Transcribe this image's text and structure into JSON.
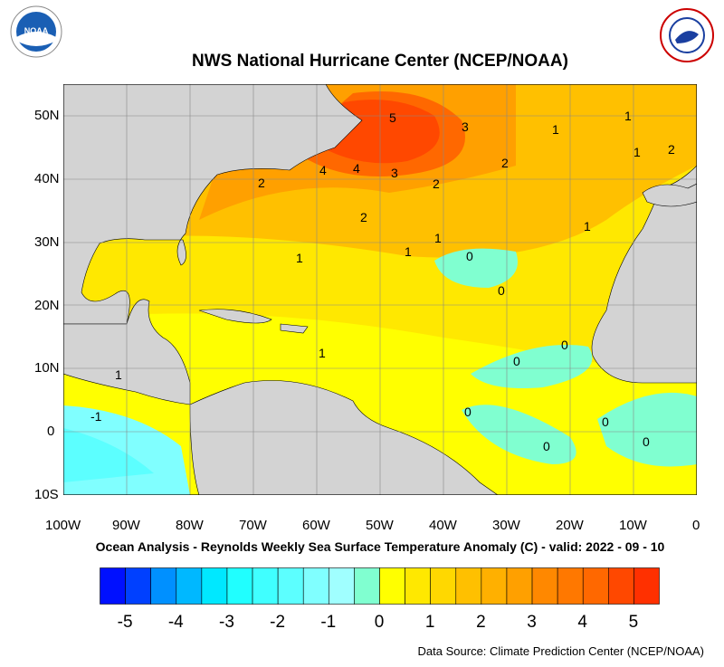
{
  "header": {
    "title": "NWS National Hurricane Center (NCEP/NOAA)",
    "logo_left": "NOAA",
    "logo_right": "NATIONAL WEATHER SERVICE"
  },
  "map": {
    "subtitle": "Ocean Analysis - Reynolds Weekly Sea Surface Temperature Anomaly (C) - valid: 2022 - 09 - 10",
    "lat_labels": [
      "50N",
      "40N",
      "30N",
      "20N",
      "10N",
      "0",
      "10S"
    ],
    "lon_labels": [
      "100W",
      "90W",
      "80W",
      "70W",
      "60W",
      "50W",
      "40W",
      "30W",
      "20W",
      "10W",
      "0"
    ],
    "extent": {
      "lon": [
        -100,
        0
      ],
      "lat": [
        -10,
        55
      ]
    },
    "land_color": "#d3d3d3",
    "contour_labels": [
      "5",
      "4",
      "4",
      "3",
      "3",
      "2",
      "2",
      "2",
      "2",
      "2",
      "1",
      "1",
      "1",
      "1",
      "1",
      "1",
      "1",
      "1",
      "1",
      "0",
      "0",
      "0",
      "0",
      "0",
      "0",
      "0",
      "0",
      "-1"
    ]
  },
  "colorbar": {
    "colors": [
      "#0010ff",
      "#0040ff",
      "#0090ff",
      "#00b8ff",
      "#00e8ff",
      "#20ffff",
      "#40ffff",
      "#5cffff",
      "#80ffff",
      "#a0ffff",
      "#80ffd0",
      "#ffff00",
      "#ffe800",
      "#ffd800",
      "#ffc000",
      "#ffb000",
      "#ffa000",
      "#ff8800",
      "#ff7800",
      "#ff6800",
      "#ff4800",
      "#ff3000"
    ],
    "labels": [
      "-5",
      "-4",
      "-3",
      "-2",
      "-1",
      "0",
      "1",
      "2",
      "3",
      "4",
      "5"
    ]
  },
  "footer": {
    "source": "Data Source: Climate Prediction Center (NCEP/NOAA)"
  }
}
